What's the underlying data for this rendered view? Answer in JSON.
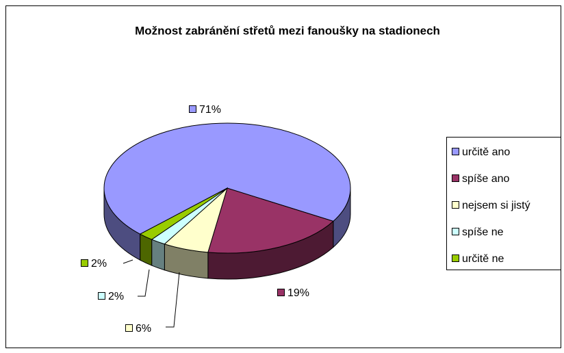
{
  "chart_data": {
    "type": "pie",
    "title": "Možnost zabránění střetů mezi fanoušky na stadionech",
    "categories": [
      "určitě ano",
      "spíše ano",
      "nejsem si jistý",
      "spíše ne",
      "určitě ne"
    ],
    "values": [
      71,
      19,
      6,
      2,
      2
    ],
    "value_labels": [
      "71%",
      "19%",
      "6%",
      "2%",
      "2%"
    ],
    "colors": [
      "#9999ff",
      "#993366",
      "#ffffcc",
      "#ccffff",
      "#99cc00"
    ],
    "legend": "right"
  }
}
